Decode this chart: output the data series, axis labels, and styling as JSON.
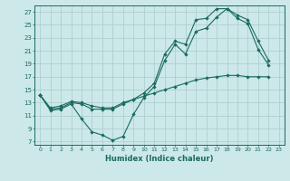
{
  "xlabel": "Humidex (Indice chaleur)",
  "ylabel": "",
  "xlim": [
    -0.5,
    23.5
  ],
  "ylim": [
    6.5,
    28
  ],
  "yticks": [
    7,
    9,
    11,
    13,
    15,
    17,
    19,
    21,
    23,
    25,
    27
  ],
  "xticks": [
    0,
    1,
    2,
    3,
    4,
    5,
    6,
    7,
    8,
    9,
    10,
    11,
    12,
    13,
    14,
    15,
    16,
    17,
    18,
    19,
    20,
    21,
    22,
    23
  ],
  "bg_color": "#cce8e8",
  "grid_color": "#b0d0d0",
  "line_color": "#1a6b5e",
  "line1_x": [
    0,
    1,
    2,
    3,
    4,
    5,
    6,
    7,
    8,
    9,
    10,
    11,
    12,
    13,
    14,
    15,
    16,
    17,
    18,
    19,
    20,
    21,
    22,
    23
  ],
  "line1_y": [
    14.2,
    11.8,
    12.0,
    12.8,
    10.5,
    8.5,
    8.0,
    7.2,
    7.8,
    11.2,
    13.8,
    15.5,
    19.5,
    22.0,
    20.5,
    24.0,
    24.5,
    26.2,
    27.5,
    26.0,
    25.2,
    21.2,
    18.8,
    null
  ],
  "line2_x": [
    0,
    1,
    2,
    3,
    4,
    5,
    6,
    7,
    8,
    9,
    10,
    11,
    12,
    13,
    14,
    15,
    16,
    17,
    18,
    19,
    20,
    21,
    22,
    23
  ],
  "line2_y": [
    14.2,
    12.0,
    12.2,
    13.0,
    12.8,
    12.0,
    12.0,
    12.0,
    12.8,
    13.5,
    14.5,
    16.0,
    20.5,
    22.5,
    22.0,
    25.8,
    26.0,
    27.5,
    27.5,
    26.5,
    25.8,
    22.5,
    19.5,
    null
  ],
  "line3_x": [
    0,
    1,
    2,
    3,
    4,
    5,
    6,
    7,
    8,
    9,
    10,
    11,
    12,
    13,
    14,
    15,
    16,
    17,
    18,
    19,
    20,
    21,
    22,
    23
  ],
  "line3_y": [
    14.2,
    12.2,
    12.5,
    13.2,
    13.0,
    12.5,
    12.2,
    12.2,
    13.0,
    13.5,
    14.0,
    14.5,
    15.0,
    15.5,
    16.0,
    16.5,
    16.8,
    17.0,
    17.2,
    17.2,
    17.0,
    17.0,
    17.0,
    null
  ]
}
